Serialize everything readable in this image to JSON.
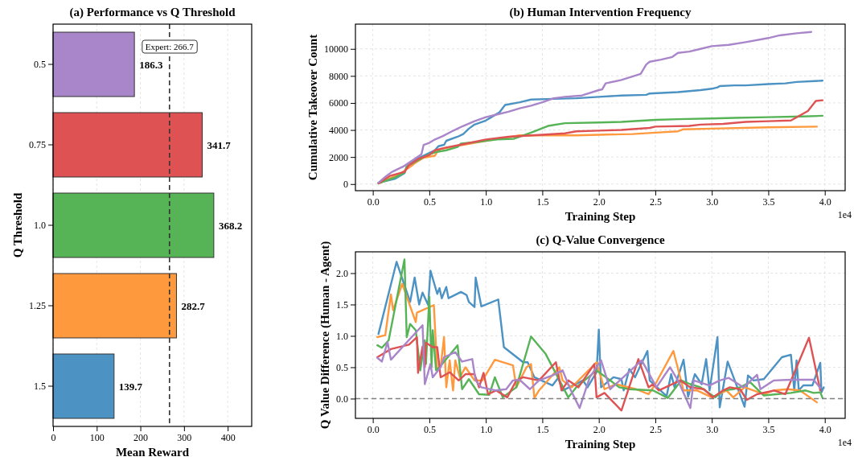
{
  "chart_data": [
    {
      "type": "bar",
      "orientation": "horizontal",
      "title": "(a) Performance vs Q Threshold",
      "xlabel": "Mean Reward",
      "ylabel": "Q Threshold",
      "categories": [
        "0.5",
        "0.75",
        "1.0",
        "1.25",
        "1.5"
      ],
      "values": [
        186.3,
        341.7,
        368.2,
        282.7,
        139.7
      ],
      "colors": [
        "#a985ca",
        "#de5253",
        "#56b356",
        "#ff993e",
        "#4c92c3"
      ],
      "xlim": [
        0,
        455
      ],
      "xticks": [
        0,
        100,
        200,
        300,
        400
      ],
      "grid": "x",
      "data_labels": true,
      "ref_lines": [
        {
          "axis": "x",
          "value": 266.7,
          "label": "Expert: 266.7",
          "color": "#333333",
          "line_style": "dashed"
        }
      ]
    },
    {
      "type": "line",
      "title": "(b) Human Intervention Frequency",
      "xlabel": "Training Step",
      "ylabel": "Cumulative Takeover Count",
      "xlim": [
        -0.154,
        4.18
      ],
      "ylim": [
        -490,
        11830
      ],
      "grid": true,
      "annotations": [
        "1e4"
      ],
      "xticks": [
        {
          "value": 0,
          "label": "0.0"
        },
        0.5,
        {
          "value": 1,
          "label": "1.0"
        },
        1.5,
        {
          "value": 2,
          "label": "2.0"
        },
        2.5,
        {
          "value": 3,
          "label": "3.0"
        },
        3.5,
        {
          "value": 4,
          "label": "4.0"
        }
      ],
      "yticks": [
        0,
        2000,
        4000,
        6000,
        8000,
        10000
      ],
      "series": [
        {
          "color": "#4c92c3",
          "x": [
            0.05,
            0.2,
            0.28,
            0.3,
            0.4,
            0.5,
            0.55,
            0.58,
            0.63,
            0.65,
            0.75,
            0.8,
            0.85,
            0.9,
            1.0,
            1.1,
            1.12,
            1.17,
            1.3,
            1.4,
            1.6,
            1.8,
            2.0,
            2.2,
            2.42,
            2.45,
            2.7,
            2.9,
            3.0,
            3.05,
            3.07,
            3.2,
            3.3,
            3.5,
            3.65,
            3.75,
            3.98
          ],
          "values": [
            100,
            400,
            800,
            1300,
            1900,
            2300,
            2500,
            2800,
            2900,
            3200,
            3500,
            3700,
            4100,
            4400,
            4700,
            5200,
            5300,
            5850,
            6050,
            6250,
            6300,
            6350,
            6450,
            6550,
            6600,
            6700,
            6800,
            6950,
            7050,
            7150,
            7250,
            7300,
            7300,
            7400,
            7450,
            7550,
            7650
          ]
        },
        {
          "color": "#ff993e",
          "x": [
            0.05,
            0.25,
            0.35,
            0.38,
            0.45,
            0.55,
            0.57,
            0.6,
            0.8,
            1.0,
            1.3,
            1.5,
            1.8,
            2.0,
            2.3,
            2.5,
            2.7,
            2.75,
            3.0,
            3.5,
            3.93
          ],
          "values": [
            50,
            800,
            1400,
            1600,
            1950,
            2100,
            2400,
            2600,
            2900,
            3200,
            3600,
            3600,
            3600,
            3650,
            3700,
            3800,
            3900,
            4050,
            4100,
            4200,
            4250
          ]
        },
        {
          "color": "#56b356",
          "x": [
            0.05,
            0.2,
            0.28,
            0.3,
            0.45,
            0.5,
            0.55,
            0.65,
            0.75,
            0.78,
            0.9,
            1.0,
            1.1,
            1.25,
            1.4,
            1.55,
            1.7,
            2.0,
            2.2,
            2.5,
            2.7,
            3.0,
            3.2,
            3.5,
            3.8,
            3.98
          ],
          "values": [
            50,
            500,
            850,
            1300,
            2000,
            2200,
            2350,
            2500,
            2750,
            3000,
            3100,
            3200,
            3300,
            3350,
            3800,
            4300,
            4500,
            4550,
            4600,
            4750,
            4800,
            4850,
            4900,
            4950,
            5000,
            5050
          ]
        },
        {
          "color": "#de5253",
          "x": [
            0.05,
            0.15,
            0.28,
            0.32,
            0.4,
            0.5,
            0.55,
            0.65,
            0.8,
            1.0,
            1.2,
            1.5,
            1.7,
            1.8,
            2.0,
            2.2,
            2.45,
            2.5,
            2.8,
            2.9,
            3.1,
            3.3,
            3.5,
            3.7,
            3.85,
            3.92,
            3.98
          ],
          "values": [
            50,
            600,
            900,
            1400,
            1850,
            2150,
            2500,
            2700,
            2950,
            3300,
            3500,
            3650,
            3750,
            3900,
            3950,
            4000,
            4150,
            4250,
            4300,
            4400,
            4450,
            4600,
            4650,
            4700,
            5400,
            6150,
            6200
          ]
        },
        {
          "color": "#a985ca",
          "x": [
            0.05,
            0.12,
            0.17,
            0.27,
            0.43,
            0.45,
            0.5,
            0.55,
            0.62,
            0.7,
            0.75,
            0.8,
            0.9,
            1.0,
            1.1,
            1.2,
            1.3,
            1.4,
            1.5,
            1.6,
            1.7,
            1.85,
            2.0,
            2.03,
            2.06,
            2.2,
            2.37,
            2.42,
            2.45,
            2.55,
            2.65,
            2.7,
            2.8,
            2.9,
            3.0,
            3.15,
            3.3,
            3.5,
            3.6,
            3.75,
            3.88
          ],
          "values": [
            100,
            600,
            900,
            1300,
            2200,
            2900,
            3050,
            3300,
            3550,
            3900,
            4100,
            4300,
            4650,
            4950,
            5150,
            5350,
            5600,
            5800,
            6050,
            6350,
            6450,
            6550,
            6950,
            7000,
            7450,
            7700,
            8150,
            8850,
            9050,
            9200,
            9400,
            9700,
            9800,
            10000,
            10200,
            10300,
            10500,
            10800,
            11000,
            11150,
            11250
          ]
        }
      ]
    },
    {
      "type": "line",
      "title": "(c) Q-Value Convergence",
      "xlabel": "Training Step",
      "ylabel": "Q Value Difference (Human - Agent)",
      "xlim": [
        -0.154,
        4.18
      ],
      "ylim": [
        -0.315,
        2.34
      ],
      "grid": true,
      "annotations": [
        "1e4"
      ],
      "xticks": [
        {
          "value": 0,
          "label": "0.0"
        },
        0.5,
        {
          "value": 1,
          "label": "1.0"
        },
        1.5,
        {
          "value": 2,
          "label": "2.0"
        },
        2.5,
        {
          "value": 3,
          "label": "3.0"
        },
        3.5,
        {
          "value": 4,
          "label": "4.0"
        }
      ],
      "yticks": [
        {
          "value": 0,
          "label": "0.0"
        },
        0.5,
        {
          "value": 1,
          "label": "1.0"
        },
        1.5,
        {
          "value": 2,
          "label": "2.0"
        }
      ],
      "ref_lines": [
        {
          "axis": "y",
          "value": 0,
          "color": "#808080",
          "line_style": "dashed"
        }
      ],
      "series": [
        {
          "color": "#4c92c3",
          "x": [
            0.05,
            0.21,
            0.33,
            0.37,
            0.41,
            0.44,
            0.49,
            0.51,
            0.57,
            0.59,
            0.61,
            0.65,
            0.67,
            0.78,
            0.83,
            0.85,
            0.9,
            0.91,
            0.96,
            1.11,
            1.16,
            1.33,
            1.37,
            1.43,
            1.59,
            1.64,
            1.68,
            1.86,
            1.9,
            1.98,
            2.0,
            2.02,
            2.13,
            2.2,
            2.22,
            2.27,
            2.32,
            2.43,
            2.45,
            2.6,
            2.64,
            2.67,
            2.75,
            2.79,
            2.85,
            2.91,
            2.95,
            2.98,
            3.05,
            3.07,
            3.14,
            3.29,
            3.32,
            3.37,
            3.46,
            3.62,
            3.7,
            3.73,
            3.75,
            3.77,
            3.81,
            3.89,
            3.96,
            3.97,
            3.99
          ],
          "values": [
            1.03,
            2.18,
            1.54,
            1.93,
            1.5,
            1.69,
            1.49,
            2.04,
            1.67,
            1.76,
            1.6,
            1.78,
            1.6,
            1.7,
            1.65,
            1.54,
            1.46,
            1.93,
            1.47,
            1.58,
            0.82,
            0.58,
            0.58,
            0.34,
            0.21,
            0.33,
            0.13,
            0.29,
            0.18,
            0.42,
            1.1,
            0.18,
            0.34,
            0.31,
            0.13,
            0.47,
            0.34,
            0.76,
            0.29,
            0.04,
            0.39,
            0.18,
            0.62,
            0.03,
            0.39,
            0.23,
            0.63,
            0.13,
            0.98,
            -0.14,
            0.59,
            -0.13,
            0.37,
            0.29,
            0.31,
            0.66,
            0.7,
            0.13,
            0.61,
            0.13,
            0.21,
            0.21,
            0.57,
            0.1,
            0.18
          ]
        },
        {
          "color": "#ff993e",
          "x": [
            0.04,
            0.11,
            0.16,
            0.18,
            0.26,
            0.38,
            0.39,
            0.54,
            0.57,
            0.6,
            0.63,
            0.65,
            0.68,
            0.71,
            0.73,
            0.77,
            0.82,
            0.9,
            0.97,
            1.08,
            1.24,
            1.27,
            1.36,
            1.4,
            1.43,
            1.47,
            1.52,
            1.65,
            1.68,
            1.76,
            1.98,
            2.05,
            2.15,
            2.33,
            2.44,
            2.5,
            2.66,
            2.75,
            2.87,
            3.0,
            3.13,
            3.19,
            3.29,
            3.46,
            3.55,
            3.67,
            3.78,
            3.93
          ],
          "values": [
            0.98,
            1.01,
            1.66,
            1.41,
            1.83,
            1.22,
            1.37,
            1.49,
            0.45,
            0.5,
            0.98,
            0.18,
            0.61,
            0.13,
            0.61,
            0.34,
            0.5,
            0.29,
            0.29,
            0.62,
            0.53,
            0.18,
            0.5,
            0.55,
            0.01,
            0.13,
            0.23,
            0.5,
            0.29,
            0.18,
            0.58,
            0.15,
            0.23,
            0.15,
            0.07,
            0.23,
            0.76,
            0.13,
            0.13,
            0.02,
            0.13,
            0.02,
            0.18,
            0.07,
            0.13,
            0.15,
            0.13,
            -0.06
          ]
        },
        {
          "color": "#56b356",
          "x": [
            0.04,
            0.08,
            0.14,
            0.28,
            0.3,
            0.33,
            0.38,
            0.42,
            0.46,
            0.47,
            0.5,
            0.52,
            0.53,
            0.56,
            0.59,
            0.65,
            0.75,
            0.79,
            0.85,
            0.94,
            1.03,
            1.08,
            1.15,
            1.27,
            1.4,
            1.53,
            1.73,
            1.8,
            1.98,
            2.1,
            2.18,
            2.27,
            2.48,
            2.61,
            2.73,
            2.81,
            2.9,
            3.03,
            3.1,
            3.19,
            3.25,
            3.34,
            3.46,
            3.7,
            3.83,
            3.9,
            3.96,
            3.98
          ],
          "values": [
            0.85,
            0.81,
            0.93,
            2.22,
            0.98,
            1.19,
            1.09,
            0.45,
            0.93,
            0.55,
            1.62,
            0.5,
            1.09,
            0.45,
            0.5,
            0.63,
            0.85,
            0.15,
            0.31,
            0.07,
            0.06,
            0.34,
            0.02,
            0.18,
            0.99,
            0.71,
            0.02,
            0.18,
            0.45,
            0.29,
            0.18,
            0.15,
            0.13,
            0.01,
            0.29,
            0.23,
            0.18,
            0.02,
            0.13,
            0.15,
            0.18,
            0.26,
            0.05,
            0.09,
            0.13,
            0.09,
            0.1,
            0.01
          ]
        },
        {
          "color": "#de5253",
          "x": [
            0.04,
            0.16,
            0.32,
            0.39,
            0.4,
            0.44,
            0.46,
            0.47,
            0.53,
            0.57,
            0.6,
            0.68,
            0.76,
            0.82,
            0.9,
            0.94,
            0.98,
            1.02,
            1.09,
            1.19,
            1.27,
            1.33,
            1.47,
            1.62,
            1.67,
            1.73,
            1.82,
            1.96,
            1.98,
            2.05,
            2.2,
            2.35,
            2.44,
            2.48,
            2.53,
            2.72,
            2.81,
            2.93,
            3.01,
            3.1,
            3.16,
            3.25,
            3.31,
            3.4,
            3.55,
            3.65,
            3.86,
            3.96
          ],
          "values": [
            0.66,
            0.79,
            0.86,
            0.98,
            0.41,
            0.83,
            0.5,
            0.89,
            0.82,
            0.82,
            0.34,
            0.42,
            0.29,
            0.39,
            0.39,
            0.18,
            0.41,
            0.07,
            0.13,
            0.02,
            0.29,
            0.34,
            0.29,
            0.58,
            0.13,
            0.29,
            0.18,
            0.55,
            0.02,
            0.09,
            -0.19,
            0.63,
            0.18,
            0.23,
            0.13,
            0.29,
            0.18,
            0.15,
            0.02,
            0.13,
            0.18,
            0.15,
            -0.02,
            0.07,
            0.13,
            0.07,
            0.97,
            0.13
          ]
        },
        {
          "color": "#a985ca",
          "x": [
            0.04,
            0.08,
            0.13,
            0.16,
            0.44,
            0.46,
            0.51,
            0.53,
            0.6,
            0.63,
            0.73,
            0.79,
            0.88,
            0.91,
            0.96,
            1.09,
            1.18,
            1.24,
            1.3,
            1.39,
            1.47,
            1.59,
            1.68,
            1.74,
            1.83,
            1.92,
            2.02,
            2.1,
            2.38,
            2.51,
            2.63,
            2.7,
            2.81,
            2.84,
            2.98,
            3.07,
            3.15,
            3.28,
            3.4,
            3.43,
            3.55,
            3.7,
            3.9,
            3.96
          ],
          "values": [
            0.65,
            0.59,
            0.9,
            0.62,
            1.17,
            0.23,
            0.55,
            0.34,
            0.5,
            0.66,
            0.74,
            0.59,
            0.63,
            0.29,
            0.18,
            0.13,
            0.15,
            0.29,
            0.3,
            0.15,
            0.29,
            0.37,
            0.45,
            0.18,
            -0.15,
            0.34,
            0.61,
            0.15,
            0.61,
            0.18,
            0.5,
            0.29,
            -0.15,
            0.29,
            0.21,
            0.29,
            0.33,
            0.18,
            0.38,
            0.15,
            0.29,
            0.3,
            0.3,
            0.17
          ]
        }
      ]
    }
  ]
}
